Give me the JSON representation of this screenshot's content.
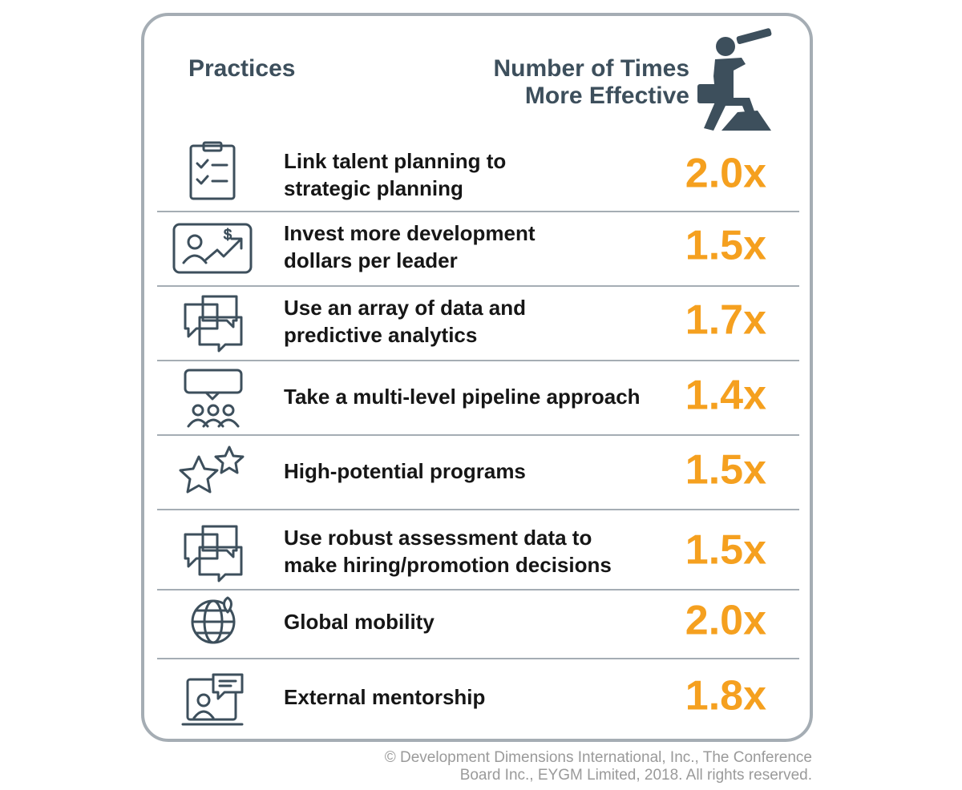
{
  "header": {
    "practices": "Practices",
    "effectiveness": [
      "Number of Times",
      "More Effective"
    ]
  },
  "rows": [
    {
      "practice": [
        "Link talent planning to",
        "strategic planning"
      ],
      "value": "2.0x"
    },
    {
      "practice": [
        "Invest more development",
        "dollars per leader"
      ],
      "value": "1.5x"
    },
    {
      "practice": [
        "Use an array of data and",
        "predictive analytics"
      ],
      "value": "1.7x"
    },
    {
      "practice": [
        "Take a multi-level pipeline approach"
      ],
      "value": "1.4x"
    },
    {
      "practice": [
        "High-potential programs"
      ],
      "value": "1.5x"
    },
    {
      "practice": [
        "Use robust assessment data to",
        "make hiring/promotion decisions"
      ],
      "value": "1.5x"
    },
    {
      "practice": [
        "Global mobility"
      ],
      "value": "2.0x"
    },
    {
      "practice": [
        "External mentorship"
      ],
      "value": "1.8x"
    }
  ],
  "footer": [
    "© Development Dimensions International, Inc., The Conference",
    "Board Inc., EYGM Limited, 2018. All rights reserved."
  ]
}
